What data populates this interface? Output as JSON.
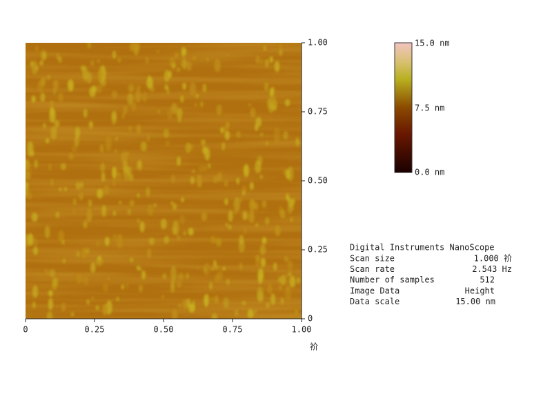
{
  "image": {
    "x_ticks": [
      "0",
      "0.25",
      "0.50",
      "0.75",
      "1.00"
    ],
    "y_ticks": [
      "0",
      "0.25",
      "0.50",
      "0.75",
      "1.00"
    ],
    "x_unit": "祄",
    "color_scale": {
      "top": "15.0 nm",
      "middle": "7.5 nm",
      "bottom": "0.0 nm"
    }
  },
  "info": {
    "header": "Digital Instruments NanoScope",
    "rows": [
      [
        "Scan size",
        "1.000 祄"
      ],
      [
        "Scan rate",
        "2.543 Hz"
      ],
      [
        "Number of samples",
        "512"
      ],
      [
        "Image Data",
        "Height"
      ],
      [
        "Data scale",
        "15.00 nm"
      ]
    ]
  }
}
